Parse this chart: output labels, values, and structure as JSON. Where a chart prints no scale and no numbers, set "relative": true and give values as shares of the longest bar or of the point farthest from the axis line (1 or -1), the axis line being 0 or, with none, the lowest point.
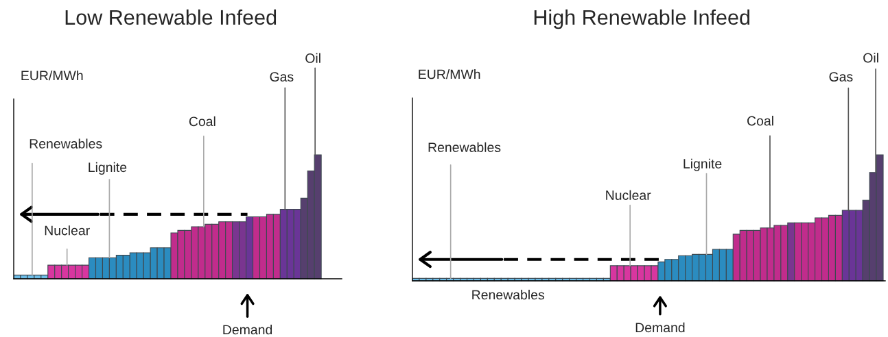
{
  "chart_data": [
    {
      "type": "bar",
      "title": "Low Renewable Infeed",
      "ylabel": "EUR/MWh",
      "relative": true,
      "categories": [
        null,
        null,
        null,
        null,
        null,
        null,
        null,
        null,
        null,
        null,
        null,
        null,
        null,
        null,
        null,
        null,
        null,
        null,
        null,
        null,
        null,
        null,
        null,
        null,
        null,
        null,
        null,
        null,
        null,
        null,
        null,
        null,
        null,
        null,
        null,
        null,
        null,
        null,
        null,
        null,
        null,
        null,
        null,
        null,
        null
      ],
      "values": [
        0.03,
        0.03,
        0.03,
        0.03,
        0.03,
        0.11,
        0.11,
        0.11,
        0.11,
        0.11,
        0.11,
        0.17,
        0.17,
        0.17,
        0.17,
        0.19,
        0.19,
        0.21,
        0.21,
        0.21,
        0.25,
        0.25,
        0.25,
        0.37,
        0.39,
        0.39,
        0.42,
        0.42,
        0.44,
        0.44,
        0.46,
        0.46,
        0.46,
        0.46,
        0.5,
        0.5,
        0.5,
        0.52,
        0.52,
        0.56,
        0.56,
        0.56,
        0.65,
        0.87,
        1.0
      ],
      "colors": [
        "#6cbde8",
        "#6cbde8",
        "#6cbde8",
        "#6cbde8",
        "#6cbde8",
        "#d8369f",
        "#d8369f",
        "#d8369f",
        "#d8369f",
        "#d8369f",
        "#d8369f",
        "#2b8cc0",
        "#2b8cc0",
        "#2b8cc0",
        "#2b8cc0",
        "#2b8cc0",
        "#2b8cc0",
        "#2b8cc0",
        "#2b8cc0",
        "#2b8cc0",
        "#2b8cc0",
        "#2b8cc0",
        "#2b8cc0",
        "#c12c8c",
        "#c12c8c",
        "#c12c8c",
        "#c12c8c",
        "#c12c8c",
        "#c12c8c",
        "#c12c8c",
        "#c12c8c",
        "#c12c8c",
        "#7a3590",
        "#7a3590",
        "#6a3597",
        "#c12c8c",
        "#c12c8c",
        "#c12c8c",
        "#c12c8c",
        "#6a3597",
        "#6a3597",
        "#6a3597",
        "#563f6e",
        "#563f6e",
        "#563f6e"
      ],
      "annotations": [
        "Renewables",
        "Lignite",
        "Nuclear",
        "Coal",
        "Gas",
        "Oil",
        "Demand"
      ],
      "ref_lines": [
        {
          "axis": "y",
          "value": 0.52,
          "line_style": "dashed",
          "color": "#000000"
        }
      ]
    },
    {
      "type": "bar",
      "title": "High Renewable Infeed",
      "ylabel": "EUR/MWh",
      "relative": true,
      "categories": [
        null,
        null,
        null,
        null,
        null,
        null,
        null,
        null,
        null,
        null,
        null,
        null,
        null,
        null,
        null,
        null,
        null,
        null,
        null,
        null,
        null,
        null,
        null,
        null,
        null,
        null,
        null,
        null,
        null,
        null,
        null,
        null,
        null,
        null,
        null,
        null,
        null,
        null,
        null,
        null,
        null,
        null,
        null,
        null,
        null,
        null,
        null,
        null,
        null,
        null,
        null,
        null,
        null,
        null,
        null,
        null,
        null,
        null,
        null,
        null,
        null,
        null,
        null,
        null,
        null,
        null,
        null,
        null,
        null
      ],
      "values": [
        0.02,
        0.02,
        0.02,
        0.02,
        0.02,
        0.02,
        0.02,
        0.02,
        0.02,
        0.02,
        0.02,
        0.02,
        0.02,
        0.02,
        0.02,
        0.02,
        0.02,
        0.02,
        0.02,
        0.02,
        0.02,
        0.02,
        0.02,
        0.02,
        0.02,
        0.02,
        0.02,
        0.02,
        0.02,
        0.12,
        0.12,
        0.12,
        0.12,
        0.12,
        0.12,
        0.12,
        0.15,
        0.17,
        0.17,
        0.2,
        0.2,
        0.21,
        0.21,
        0.21,
        0.25,
        0.25,
        0.25,
        0.37,
        0.4,
        0.4,
        0.4,
        0.42,
        0.42,
        0.44,
        0.44,
        0.46,
        0.46,
        0.46,
        0.46,
        0.5,
        0.5,
        0.52,
        0.52,
        0.56,
        0.56,
        0.56,
        0.64,
        0.86,
        1.0
      ],
      "colors": [
        "#6cbde8",
        "#6cbde8",
        "#6cbde8",
        "#6cbde8",
        "#6cbde8",
        "#6cbde8",
        "#6cbde8",
        "#6cbde8",
        "#6cbde8",
        "#6cbde8",
        "#6cbde8",
        "#6cbde8",
        "#6cbde8",
        "#6cbde8",
        "#6cbde8",
        "#6cbde8",
        "#6cbde8",
        "#6cbde8",
        "#6cbde8",
        "#6cbde8",
        "#6cbde8",
        "#6cbde8",
        "#6cbde8",
        "#6cbde8",
        "#6cbde8",
        "#6cbde8",
        "#6cbde8",
        "#6cbde8",
        "#6cbde8",
        "#d8369f",
        "#d8369f",
        "#d8369f",
        "#d8369f",
        "#d8369f",
        "#d8369f",
        "#d8369f",
        "#2b8cc0",
        "#2b8cc0",
        "#2b8cc0",
        "#2b8cc0",
        "#2b8cc0",
        "#2b8cc0",
        "#2b8cc0",
        "#2b8cc0",
        "#2b8cc0",
        "#2b8cc0",
        "#2b8cc0",
        "#c12c8c",
        "#c12c8c",
        "#c12c8c",
        "#c12c8c",
        "#c12c8c",
        "#c12c8c",
        "#c12c8c",
        "#c12c8c",
        "#7a3590",
        "#c12c8c",
        "#c12c8c",
        "#c12c8c",
        "#c12c8c",
        "#c12c8c",
        "#c12c8c",
        "#c12c8c",
        "#6a3597",
        "#6a3597",
        "#6a3597",
        "#563f6e",
        "#563f6e",
        "#563f6e"
      ],
      "annotations": [
        "Renewables",
        "Nuclear",
        "Lignite",
        "Coal",
        "Gas",
        "Oil",
        "Renewables",
        "Demand"
      ],
      "ref_lines": [
        {
          "axis": "y",
          "value": 0.17,
          "line_style": "dashed",
          "color": "#000000"
        }
      ]
    }
  ]
}
